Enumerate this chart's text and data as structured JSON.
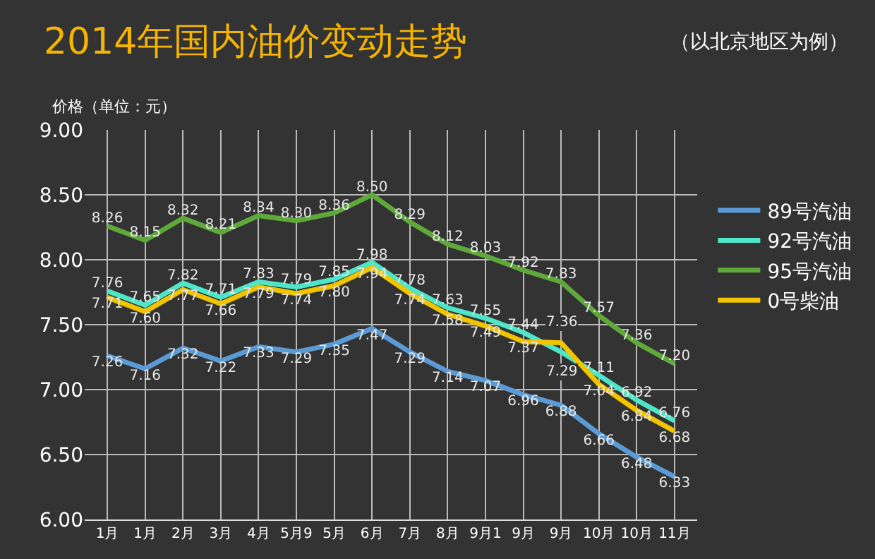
{
  "chart_data": {
    "type": "line",
    "title": "2014年国内油价变动走势",
    "subtitle": "（以北京地区为例）",
    "ylabel": "价格（单位：元）",
    "categories": [
      "1月",
      "1月",
      "2月",
      "3月",
      "4月",
      "5月9",
      "5月",
      "6月",
      "7月",
      "8月",
      "9月1",
      "9月",
      "9月",
      "10月",
      "10月",
      "11月"
    ],
    "series": [
      {
        "name": "89号汽油",
        "color": "#5b9bd5",
        "values": [
          7.26,
          7.16,
          7.32,
          7.22,
          7.33,
          7.29,
          7.35,
          7.47,
          7.29,
          7.14,
          7.07,
          6.96,
          6.88,
          6.66,
          6.48,
          6.33
        ],
        "value_labels": [
          "7.26",
          "7.16",
          "7.32",
          "7.22",
          "7.33",
          "7.29",
          "7.35",
          "7.47",
          "7.29",
          "7.14",
          "7.07",
          "6.96",
          "6.88",
          "6.66",
          "6.48",
          "6.33"
        ]
      },
      {
        "name": "92号汽油",
        "color": "#4ee6c8",
        "values": [
          7.76,
          7.65,
          7.82,
          7.71,
          7.83,
          7.79,
          7.85,
          7.98,
          7.78,
          7.63,
          7.55,
          7.44,
          7.29,
          7.11,
          6.92,
          6.76
        ],
        "value_labels": [
          "7.76",
          "7.65",
          "7.82",
          "7.71",
          "7.83",
          "7.79",
          "7.85",
          "7.98",
          "7.78",
          "7.63",
          "7.55",
          "7.44",
          "7.29",
          "7.11",
          "6.92",
          "6.76"
        ]
      },
      {
        "name": "95号汽油",
        "color": "#5fa83a",
        "values": [
          8.26,
          8.15,
          8.32,
          8.21,
          8.34,
          8.3,
          8.36,
          8.5,
          8.29,
          8.12,
          8.03,
          7.92,
          7.83,
          7.57,
          7.36,
          7.2
        ],
        "value_labels": [
          "8.26",
          "8.15",
          "8.32",
          "8.21",
          "8.34",
          "8.30",
          "8.36",
          "8.50",
          "8.29",
          "8.12",
          "8.03",
          "7.92",
          "7.83",
          "7.57",
          "7.36",
          "7.20"
        ]
      },
      {
        "name": "0号柴油",
        "color": "#f2c400",
        "values": [
          7.71,
          7.6,
          7.77,
          7.66,
          7.79,
          7.74,
          7.8,
          7.94,
          7.74,
          7.58,
          7.49,
          7.37,
          7.36,
          7.04,
          6.84,
          6.68
        ],
        "value_labels": [
          "7.71",
          "7.60",
          "7.77",
          "7.66",
          "7.79",
          "7.74",
          "7.80",
          "7.94",
          "7.74",
          "7.58",
          "7.49",
          "7.37",
          "7.36",
          "7.04",
          "6.84",
          "6.68"
        ]
      }
    ],
    "ylim": [
      6,
      9
    ],
    "yticks": [
      {
        "value": 6,
        "label": "6.00"
      },
      {
        "value": 6.5,
        "label": "6.50"
      },
      {
        "value": 7,
        "label": "7.00"
      },
      {
        "value": 7.5,
        "label": "7.50"
      },
      {
        "value": 8,
        "label": "8.00"
      },
      {
        "value": 8.5,
        "label": "8.50"
      },
      {
        "value": 9,
        "label": "9.00"
      }
    ],
    "grid": true,
    "legend": "right",
    "marker": "none",
    "line_style": "solid"
  }
}
